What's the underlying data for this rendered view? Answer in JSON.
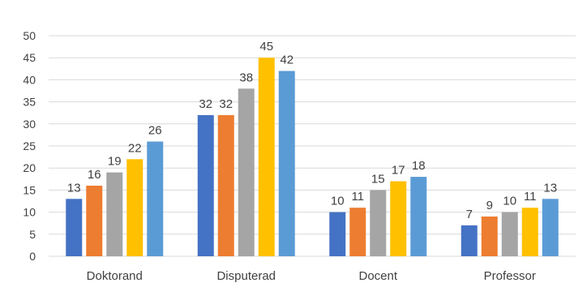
{
  "chart_data": {
    "type": "bar",
    "title": "",
    "xlabel": "",
    "ylabel": "",
    "categories": [
      "Doktorand",
      "Disputerad",
      "Docent",
      "Professor"
    ],
    "series": [
      {
        "values": [
          13,
          32,
          10,
          7
        ],
        "color": "#4472C4"
      },
      {
        "values": [
          16,
          32,
          11,
          9
        ],
        "color": "#ED7D31"
      },
      {
        "values": [
          19,
          38,
          15,
          10
        ],
        "color": "#A5A5A5"
      },
      {
        "values": [
          22,
          45,
          17,
          11
        ],
        "color": "#FFC000"
      },
      {
        "values": [
          26,
          42,
          18,
          13
        ],
        "color": "#5B9BD5"
      }
    ],
    "ylim": [
      0,
      50
    ],
    "yticks": [
      0,
      5,
      10,
      15,
      20,
      25,
      30,
      35,
      40,
      45,
      50
    ],
    "grid": true,
    "legend": "none"
  }
}
